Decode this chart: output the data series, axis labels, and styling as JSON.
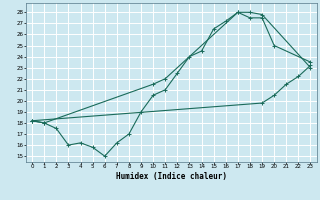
{
  "title": "",
  "xlabel": "Humidex (Indice chaleur)",
  "bg_color": "#cde8f0",
  "grid_color": "#ffffff",
  "line_color": "#1a6b5a",
  "xlim": [
    -0.5,
    23.5
  ],
  "ylim": [
    14.5,
    28.8
  ],
  "xticks": [
    0,
    1,
    2,
    3,
    4,
    5,
    6,
    7,
    8,
    9,
    10,
    11,
    12,
    13,
    14,
    15,
    16,
    17,
    18,
    19,
    20,
    21,
    22,
    23
  ],
  "yticks": [
    15,
    16,
    17,
    18,
    19,
    20,
    21,
    22,
    23,
    24,
    25,
    26,
    27,
    28
  ],
  "line1_x": [
    0,
    1,
    2,
    3,
    4,
    5,
    6,
    7,
    8,
    9,
    10,
    11,
    12,
    13,
    14,
    15,
    16,
    17,
    18,
    19,
    20,
    23
  ],
  "line1_y": [
    18.2,
    18.0,
    17.5,
    16.0,
    16.2,
    15.8,
    15.0,
    16.2,
    17.0,
    19.0,
    20.5,
    21.0,
    22.5,
    24.0,
    24.5,
    26.5,
    27.2,
    28.0,
    27.5,
    27.5,
    25.0,
    23.5
  ],
  "line2_x": [
    0,
    1,
    10,
    11,
    17,
    18,
    19,
    23
  ],
  "line2_y": [
    18.2,
    18.0,
    21.5,
    22.0,
    28.0,
    28.0,
    27.8,
    23.0
  ],
  "line3_x": [
    0,
    19,
    20,
    21,
    22,
    23
  ],
  "line3_y": [
    18.2,
    19.8,
    20.5,
    21.5,
    22.2,
    23.2
  ],
  "tick_fontsize": 4.0,
  "xlabel_fontsize": 5.5
}
